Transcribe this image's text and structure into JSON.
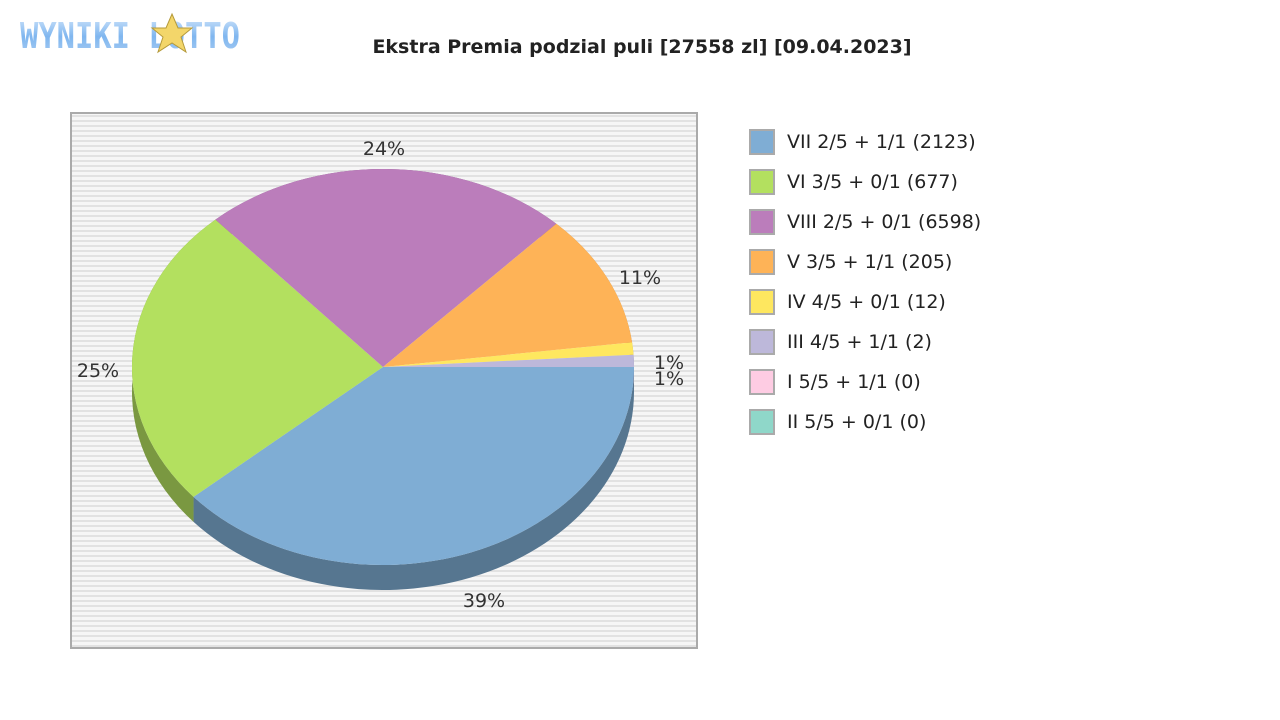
{
  "logo_text": "WYNIKI LOTTO",
  "chart_data": {
    "type": "pie",
    "title": "Ekstra Premia podzial puli [27558 zl] [09.04.2023]",
    "slices": [
      {
        "legend": "VII 2/5 + 1/1 (2123)",
        "percent": 39,
        "label": "39%",
        "color": "#7fadd4"
      },
      {
        "legend": "VI 3/5 + 0/1 (677)",
        "percent": 25,
        "label": "25%",
        "color": "#b3e05f"
      },
      {
        "legend": "VIII 2/5 + 0/1 (6598)",
        "percent": 24,
        "label": "24%",
        "color": "#bb7dbb"
      },
      {
        "legend": "V 3/5 + 1/1 (205)",
        "percent": 11,
        "label": "11%",
        "color": "#feb357"
      },
      {
        "legend": "IV 4/5 + 0/1 (12)",
        "percent": 1,
        "label": "1%",
        "color": "#fee75f"
      },
      {
        "legend": "III 4/5 + 1/1 (2)",
        "percent": 1,
        "label": "1%",
        "color": "#bdb8da"
      },
      {
        "legend": "I 5/5 + 1/1 (0)",
        "percent": 0,
        "label": "",
        "color": "#fecce3"
      },
      {
        "legend": "II 5/5 + 0/1 (0)",
        "percent": 0,
        "label": "",
        "color": "#8fd7c9"
      }
    ],
    "legend_position": "right",
    "style": "3d"
  }
}
